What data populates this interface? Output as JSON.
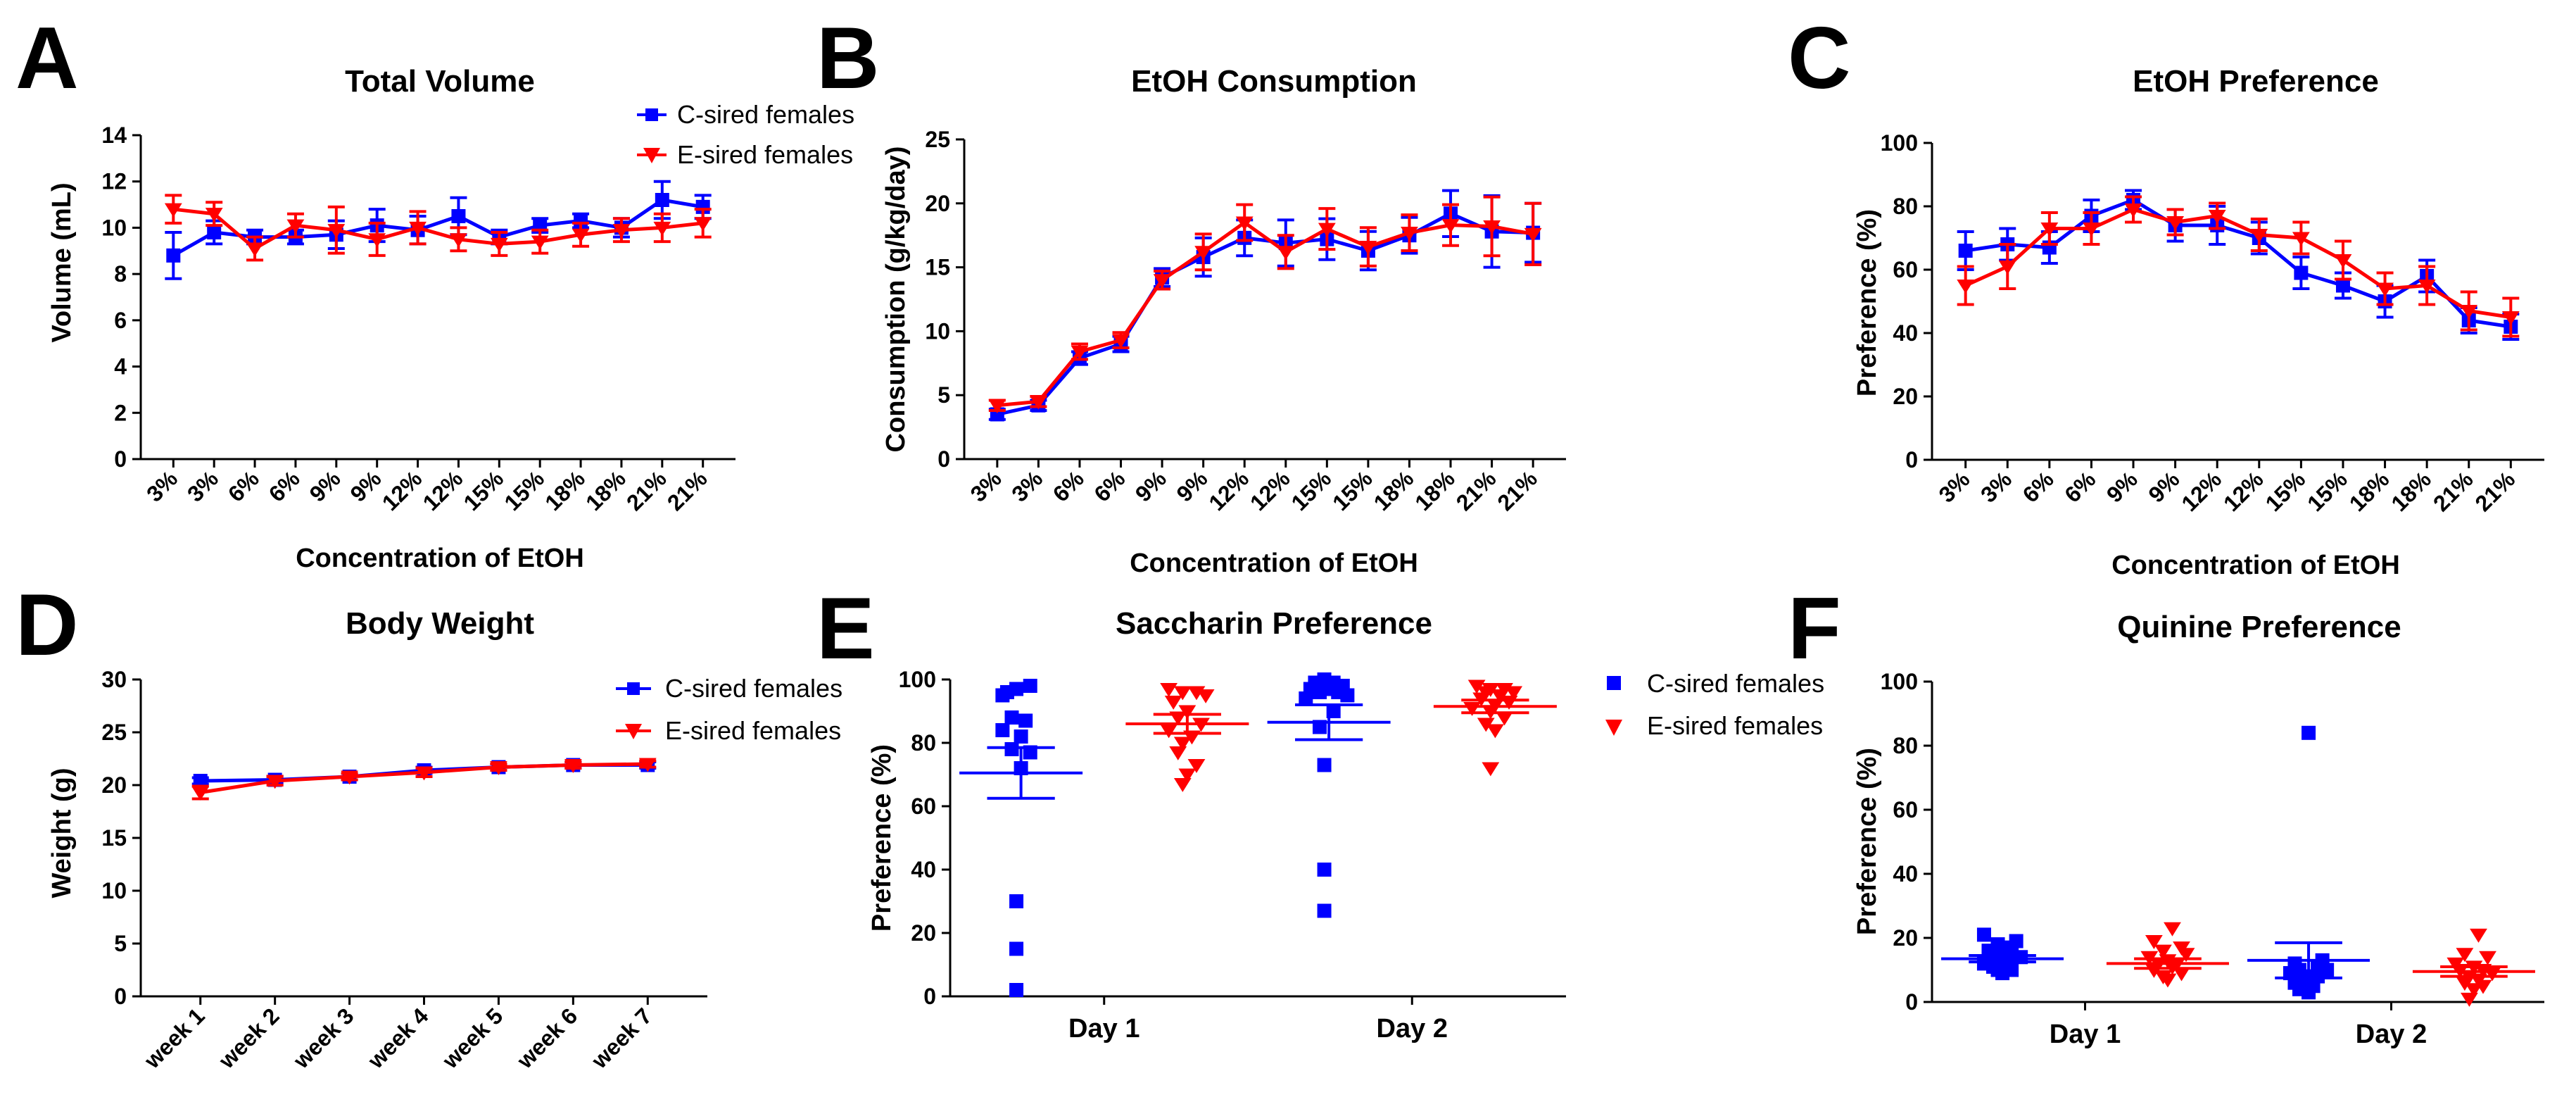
{
  "colors": {
    "c_sired": "#0000ff",
    "e_sired": "#ff0000"
  },
  "panels": [
    {
      "id": "A",
      "label": "A",
      "title": "Total Volume",
      "chart_data": {
        "type": "line",
        "categories": [
          "3%",
          "3%",
          "6%",
          "6%",
          "9%",
          "9%",
          "12%",
          "12%",
          "15%",
          "15%",
          "18%",
          "18%",
          "21%",
          "21%"
        ],
        "xlabel": "Concentration of EtOH",
        "ylabel": "Volume (mL)",
        "ylim": [
          0,
          14
        ],
        "yticks": [
          0,
          2,
          4,
          6,
          8,
          10,
          12,
          14
        ],
        "legend_position": "top-right",
        "series": [
          {
            "name": "C-sired females",
            "color": "#0000ff",
            "marker": "square",
            "values": [
              8.8,
              9.8,
              9.6,
              9.6,
              9.7,
              10.1,
              9.9,
              10.5,
              9.6,
              10.1,
              10.3,
              10.0,
              11.2,
              10.9
            ],
            "errors": [
              1.0,
              0.5,
              0.3,
              0.3,
              0.6,
              0.7,
              0.6,
              0.8,
              0.3,
              0.3,
              0.3,
              0.4,
              0.8,
              0.5
            ]
          },
          {
            "name": "E-sired females",
            "color": "#ff0000",
            "marker": "triangle-down",
            "values": [
              10.8,
              10.6,
              9.1,
              10.1,
              9.9,
              9.5,
              10.0,
              9.5,
              9.3,
              9.4,
              9.7,
              9.9,
              10.0,
              10.2
            ],
            "errors": [
              0.6,
              0.5,
              0.5,
              0.5,
              1.0,
              0.7,
              0.7,
              0.5,
              0.5,
              0.5,
              0.5,
              0.5,
              0.6,
              0.6
            ]
          }
        ]
      }
    },
    {
      "id": "B",
      "label": "B",
      "title": "EtOH Consumption",
      "chart_data": {
        "type": "line",
        "categories": [
          "3%",
          "3%",
          "6%",
          "6%",
          "9%",
          "9%",
          "12%",
          "12%",
          "15%",
          "15%",
          "18%",
          "18%",
          "21%",
          "21%"
        ],
        "xlabel": "Concentration of EtOH",
        "ylabel": "Consumption (g/kg/day)",
        "ylim": [
          0,
          25
        ],
        "yticks": [
          0,
          5,
          10,
          15,
          20,
          25
        ],
        "series": [
          {
            "name": "C-sired females",
            "color": "#0000ff",
            "marker": "square",
            "values": [
              3.5,
              4.2,
              7.9,
              9.0,
              14.2,
              15.8,
              17.3,
              16.9,
              17.2,
              16.3,
              17.5,
              19.2,
              17.8,
              17.7
            ],
            "errors": [
              0.4,
              0.4,
              0.5,
              0.6,
              0.7,
              1.5,
              1.4,
              1.8,
              1.6,
              1.5,
              1.4,
              1.8,
              2.8,
              2.3
            ]
          },
          {
            "name": "E-sired females",
            "color": "#ff0000",
            "marker": "triangle-down",
            "values": [
              4.2,
              4.5,
              8.4,
              9.3,
              14.0,
              16.2,
              18.5,
              16.2,
              18.0,
              16.6,
              17.7,
              18.3,
              18.2,
              17.6
            ],
            "errors": [
              0.4,
              0.4,
              0.6,
              0.6,
              0.7,
              1.4,
              1.4,
              1.3,
              1.6,
              1.5,
              1.4,
              1.6,
              2.3,
              2.4
            ]
          }
        ]
      }
    },
    {
      "id": "C",
      "label": "C",
      "title": "EtOH Preference",
      "chart_data": {
        "type": "line",
        "categories": [
          "3%",
          "3%",
          "6%",
          "6%",
          "9%",
          "9%",
          "12%",
          "12%",
          "15%",
          "15%",
          "18%",
          "18%",
          "21%",
          "21%"
        ],
        "xlabel": "Concentration of EtOH",
        "ylabel": "Preference (%)",
        "ylim": [
          0,
          100
        ],
        "yticks": [
          0,
          20,
          40,
          60,
          80,
          100
        ],
        "series": [
          {
            "name": "C-sired females",
            "color": "#0000ff",
            "marker": "square",
            "values": [
              66,
              68,
              67,
              77,
              82,
              74,
              74,
              70,
              59,
              55,
              50,
              58,
              44,
              42
            ],
            "errors": [
              6,
              5,
              5,
              5,
              3,
              5,
              6,
              5,
              5,
              4,
              5,
              5,
              4,
              4
            ]
          },
          {
            "name": "E-sired females",
            "color": "#ff0000",
            "marker": "triangle-down",
            "values": [
              55,
              61,
              73,
              73,
              79,
              75,
              77,
              71,
              70,
              63,
              54,
              55,
              47,
              45
            ],
            "errors": [
              6,
              7,
              5,
              5,
              4,
              4,
              4,
              5,
              5,
              6,
              5,
              6,
              6,
              6
            ]
          }
        ]
      }
    },
    {
      "id": "D",
      "label": "D",
      "title": "Body Weight",
      "chart_data": {
        "type": "line",
        "categories": [
          "week 1",
          "week 2",
          "week 3",
          "week 4",
          "week 5",
          "week 6",
          "week 7"
        ],
        "xlabel": "",
        "ylabel": "Weight (g)",
        "ylim": [
          0,
          30
        ],
        "yticks": [
          0,
          5,
          10,
          15,
          20,
          25,
          30
        ],
        "legend_position": "top-right",
        "series": [
          {
            "name": "C-sired females",
            "color": "#0000ff",
            "marker": "square",
            "values": [
              20.4,
              20.5,
              20.8,
              21.4,
              21.7,
              21.9,
              21.9
            ],
            "errors": [
              0.3,
              0.3,
              0.3,
              0.3,
              0.3,
              0.3,
              0.3
            ]
          },
          {
            "name": "E-sired females",
            "color": "#ff0000",
            "marker": "triangle-down",
            "values": [
              19.3,
              20.4,
              20.8,
              21.2,
              21.7,
              21.9,
              22.0
            ],
            "errors": [
              0.6,
              0.4,
              0.3,
              0.4,
              0.3,
              0.3,
              0.3
            ]
          }
        ]
      }
    },
    {
      "id": "E",
      "label": "E",
      "title": "Saccharin Preference",
      "chart_data": {
        "type": "scatter",
        "categories": [
          "Day 1",
          "Day 2"
        ],
        "xlabel": "",
        "ylabel": "Preference (%)",
        "ylim": [
          0,
          100
        ],
        "yticks": [
          0,
          20,
          40,
          60,
          80,
          100
        ],
        "legend_position": "right",
        "series": [
          {
            "name": "C-sired females",
            "color": "#0000ff",
            "marker": "square",
            "points": [
              [
                [
                  96,
                  97,
                  98,
                  95,
                  88,
                  87,
                  84,
                  82,
                  78,
                  77,
                  72,
                  30,
                  15,
                  2
                ],
                [
                  0.35,
                  0.45,
                  0.6,
                  0.3,
                  0.4,
                  0.55,
                  0.3,
                  0.5,
                  0.4,
                  0.6,
                  0.5,
                  0.45,
                  0.45,
                  0.45
                ]
              ],
              [
                [
                  100,
                  99,
                  99,
                  98,
                  97,
                  97,
                  96,
                  96,
                  95,
                  94,
                  90,
                  85,
                  73,
                  40,
                  27
                ],
                [
                  0.45,
                  0.55,
                  0.35,
                  0.65,
                  0.3,
                  0.5,
                  0.4,
                  0.6,
                  0.7,
                  0.25,
                  0.55,
                  0.4,
                  0.45,
                  0.45,
                  0.45
                ]
              ]
            ],
            "means": [
              70.5,
              86.5
            ],
            "sems": [
              8.0,
              5.5
            ]
          },
          {
            "name": "E-sired females",
            "color": "#ff0000",
            "marker": "triangle-down",
            "points": [
              [
                [
                  97,
                  96,
                  96,
                  95,
                  93,
                  90,
                  88,
                  86,
                  84,
                  82,
                  80,
                  77,
                  73,
                  70,
                  67
                ],
                [
                  0.3,
                  0.45,
                  0.6,
                  0.7,
                  0.35,
                  0.5,
                  0.4,
                  0.65,
                  0.3,
                  0.55,
                  0.45,
                  0.4,
                  0.6,
                  0.5,
                  0.45
                ]
              ],
              [
                [
                  98,
                  97,
                  97,
                  96,
                  96,
                  95,
                  94,
                  93,
                  92,
                  91,
                  90,
                  88,
                  86,
                  84,
                  72
                ],
                [
                  0.3,
                  0.45,
                  0.6,
                  0.7,
                  0.4,
                  0.55,
                  0.35,
                  0.65,
                  0.5,
                  0.25,
                  0.45,
                  0.6,
                  0.4,
                  0.5,
                  0.45
                ]
              ]
            ],
            "means": [
              86.0,
              91.5
            ],
            "sems": [
              3.0,
              2.0
            ]
          }
        ]
      }
    },
    {
      "id": "F",
      "label": "F",
      "title": "Quinine Preference",
      "chart_data": {
        "type": "scatter",
        "categories": [
          "Day 1",
          "Day 2"
        ],
        "xlabel": "",
        "ylabel": "Preference (%)",
        "ylim": [
          0,
          100
        ],
        "yticks": [
          0,
          20,
          40,
          60,
          80,
          100
        ],
        "series": [
          {
            "name": "C-sired females",
            "color": "#0000ff",
            "marker": "square",
            "points": [
              [
                [
                  21,
                  19,
                  18,
                  17,
                  16,
                  15,
                  14,
                  14,
                  13,
                  12,
                  12,
                  11,
                  10,
                  10,
                  9
                ],
                [
                  0.3,
                  0.65,
                  0.45,
                  0.55,
                  0.35,
                  0.6,
                  0.4,
                  0.7,
                  0.5,
                  0.3,
                  0.55,
                  0.4,
                  0.6,
                  0.45,
                  0.5
                ]
              ],
              [
                [
                  84,
                  13,
                  12,
                  11,
                  10,
                  10,
                  9,
                  8,
                  8,
                  7,
                  6,
                  5,
                  4,
                  3
                ],
                [
                  0.5,
                  0.65,
                  0.35,
                  0.6,
                  0.4,
                  0.7,
                  0.3,
                  0.5,
                  0.6,
                  0.45,
                  0.35,
                  0.55,
                  0.4,
                  0.5
                ]
              ]
            ],
            "means": [
              13.5,
              13.0
            ],
            "sems": [
              1.0,
              5.5
            ]
          },
          {
            "name": "E-sired females",
            "color": "#ff0000",
            "marker": "triangle-down",
            "points": [
              [
                [
                  23,
                  19,
                  17,
                  16,
                  15,
                  14,
                  13,
                  12,
                  12,
                  11,
                  10,
                  9,
                  8,
                  7
                ],
                [
                  0.55,
                  0.35,
                  0.65,
                  0.45,
                  0.7,
                  0.3,
                  0.5,
                  0.6,
                  0.4,
                  0.55,
                  0.35,
                  0.65,
                  0.45,
                  0.5
                ]
              ],
              [
                [
                  21,
                  15,
                  14,
                  12,
                  11,
                  10,
                  10,
                  9,
                  8,
                  7,
                  6,
                  5,
                  4,
                  1
                ],
                [
                  0.55,
                  0.4,
                  0.65,
                  0.3,
                  0.5,
                  0.6,
                  0.35,
                  0.7,
                  0.45,
                  0.55,
                  0.4,
                  0.6,
                  0.5,
                  0.45
                ]
              ]
            ],
            "means": [
              12.0,
              9.5
            ],
            "sems": [
              1.5,
              1.5
            ]
          }
        ]
      }
    }
  ]
}
